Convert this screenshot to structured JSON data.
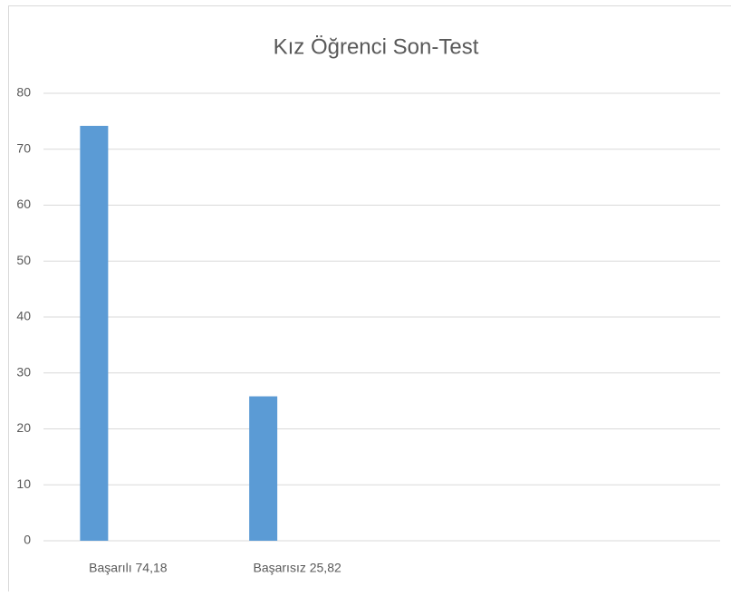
{
  "chart_data": {
    "type": "bar",
    "title": "Kız Öğrenci Son-Test",
    "categories": [
      "Başarılı 74,18",
      "Başarısız 25,82",
      null,
      null
    ],
    "values": [
      74.18,
      25.82,
      null,
      null
    ],
    "color": "#5b9bd5",
    "ylim": [
      0,
      80
    ],
    "yticks": [
      0,
      10,
      20,
      30,
      40,
      50,
      60,
      70,
      80
    ],
    "grid": true
  }
}
